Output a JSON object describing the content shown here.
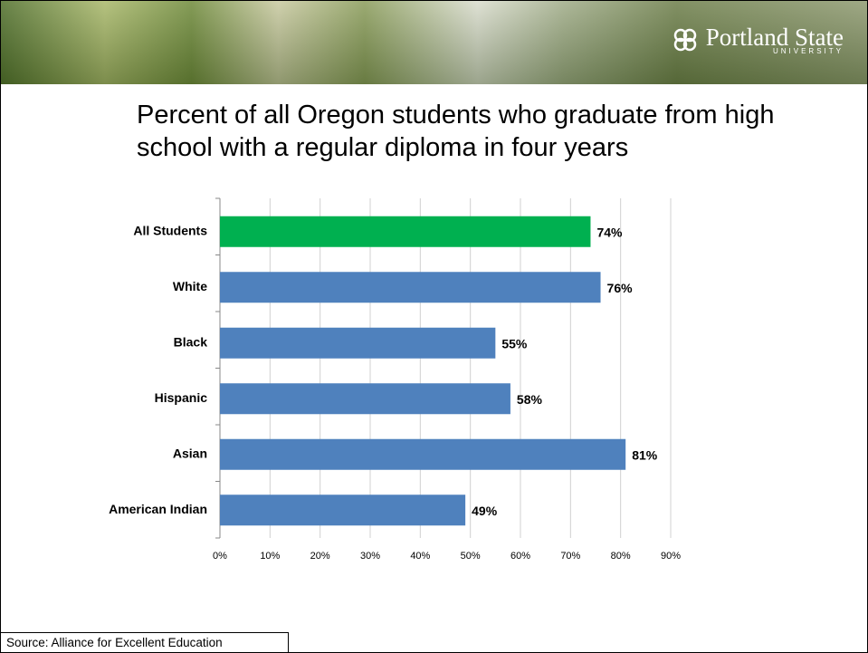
{
  "header": {
    "logo": "Portland State",
    "logo_sub": "UNIVERSITY"
  },
  "chart_data": {
    "type": "hbar",
    "title": "Percent of all Oregon students who graduate from high school with a regular diploma in four years",
    "categories": [
      "All Students",
      "White",
      "Black",
      "Hispanic",
      "Asian",
      "American Indian"
    ],
    "values": [
      74,
      76,
      55,
      58,
      81,
      49
    ],
    "value_labels": [
      "74%",
      "76%",
      "55%",
      "58%",
      "81%",
      "49%"
    ],
    "colors": [
      "#00b050",
      "#4f81bd",
      "#4f81bd",
      "#4f81bd",
      "#4f81bd",
      "#4f81bd"
    ],
    "xlim": [
      0,
      90
    ],
    "xticks": [
      {
        "value": 0,
        "label": "0%"
      },
      {
        "value": 10,
        "label": "10%"
      },
      {
        "value": 20,
        "label": "20%"
      },
      {
        "value": 30,
        "label": "30%"
      },
      {
        "value": 40,
        "label": "40%"
      },
      {
        "value": 50,
        "label": "50%"
      },
      {
        "value": 60,
        "label": "60%"
      },
      {
        "value": 70,
        "label": "70%"
      },
      {
        "value": 80,
        "label": "80%"
      },
      {
        "value": 90,
        "label": "90%"
      }
    ],
    "grid": true
  },
  "source": "Source: Alliance for Excellent Education"
}
